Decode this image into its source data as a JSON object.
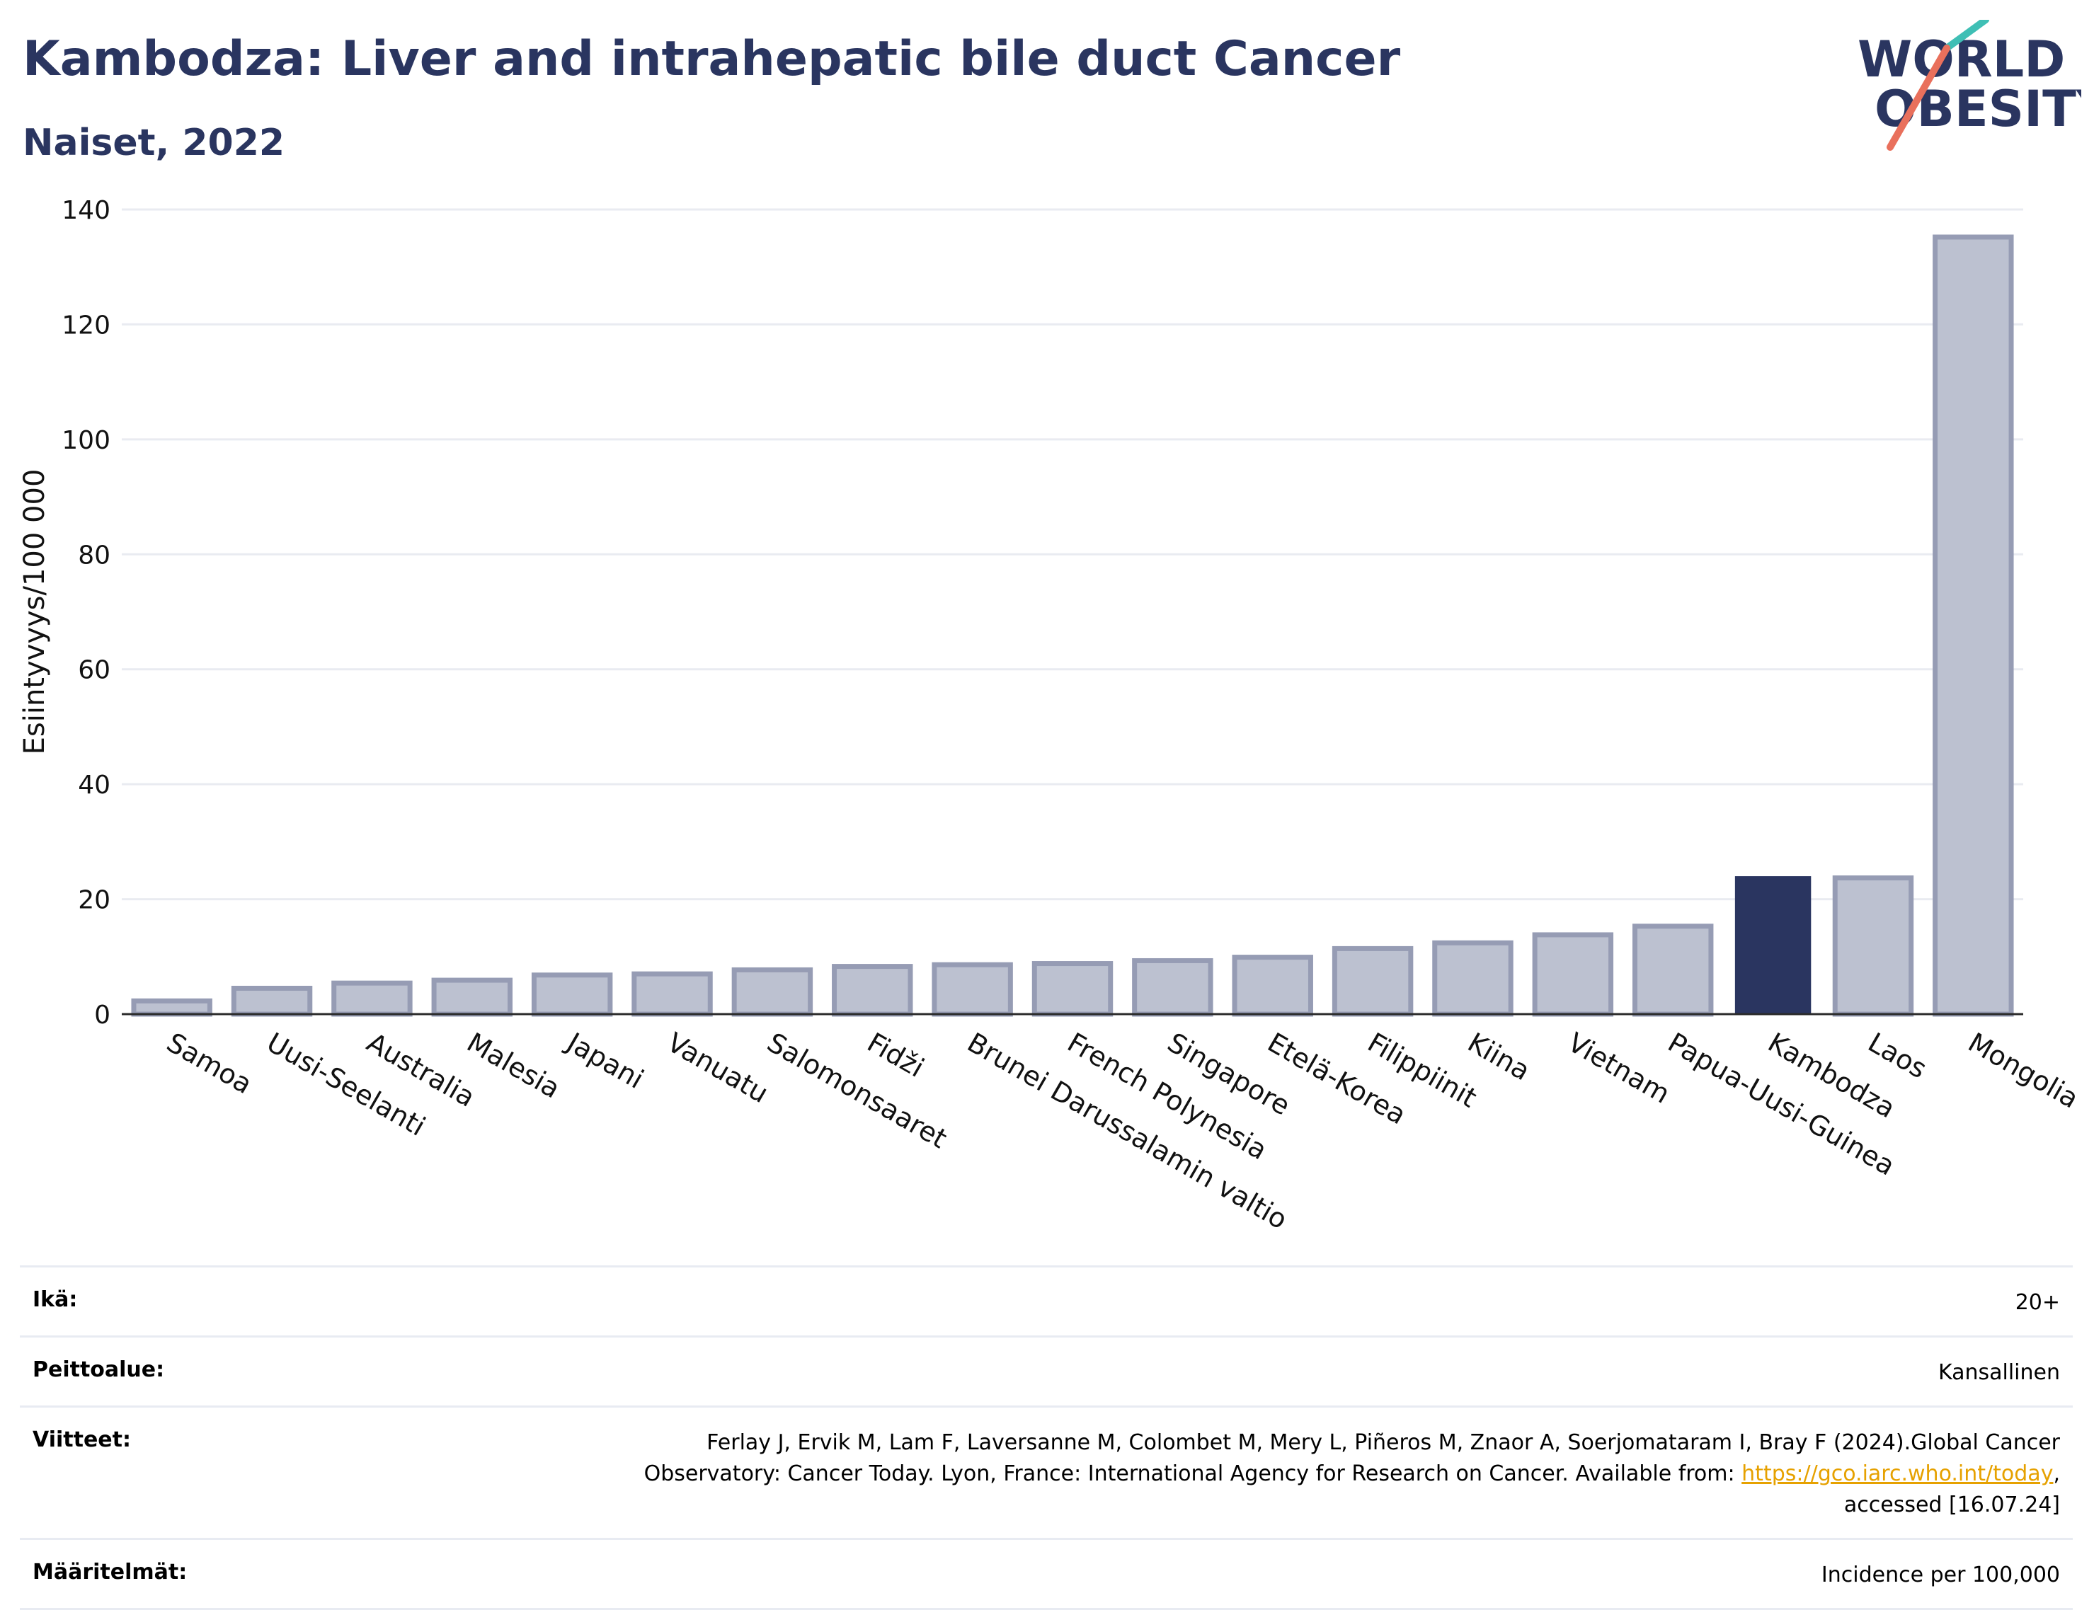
{
  "header": {
    "title": "Kambodza: Liver and intrahepatic bile duct Cancer",
    "subtitle": "Naiset, 2022"
  },
  "logo": {
    "line1": "WORLD",
    "line2": "OBESITY"
  },
  "colors": {
    "highlight": "#2a3560",
    "bar_fill": "#bcc1d0",
    "bar_stroke": "#969cb4",
    "teal": "#3fbfb5",
    "coral": "#e9705c"
  },
  "chart_data": {
    "type": "bar",
    "ylabel": "Esiintyvyys/100 000",
    "ylim": [
      0,
      140
    ],
    "yticks": [
      0,
      20,
      40,
      60,
      80,
      100,
      120,
      140
    ],
    "grid": true,
    "highlight": "Kambodza",
    "categories": [
      "Samoa",
      "Uusi-Seelanti",
      "Australia",
      "Malesia",
      "Japani",
      "Vanuatu",
      "Salomonsaaret",
      "Fidži",
      "Brunei Darussalamin valtio",
      "French Polynesia",
      "Singapore",
      "Etelä-Korea",
      "Filippiinit",
      "Kiina",
      "Vietnam",
      "Papua-Uusi-Guinea",
      "Kambodza",
      "Laos",
      "Mongolia"
    ],
    "values": [
      2.3,
      4.5,
      5.4,
      5.9,
      6.8,
      7.0,
      7.7,
      8.3,
      8.6,
      8.8,
      9.3,
      9.9,
      11.4,
      12.4,
      13.8,
      15.3,
      24.0,
      23.7,
      135.2
    ]
  },
  "info": {
    "age_label": "Ikä:",
    "age_value": "20+",
    "coverage_label": "Peittoalue:",
    "coverage_value": "Kansallinen",
    "refs_label": "Viitteet:",
    "refs_line1": "Ferlay J, Ervik M, Lam F, Laversanne M, Colombet M, Mery L, Piñeros M, Znaor A, Soerjomataram I, Bray F (2024).Global Cancer",
    "refs_line2": "Observatory: Cancer Today. Lyon, France: International Agency for Research on Cancer. Available from: ",
    "refs_link": "https://gco.iarc.who.int/today",
    "refs_line2_end": ",",
    "refs_line3": "accessed [16.07.24]",
    "defs_label": "Määritelmät:",
    "defs_value": "Incidence per 100,000"
  }
}
